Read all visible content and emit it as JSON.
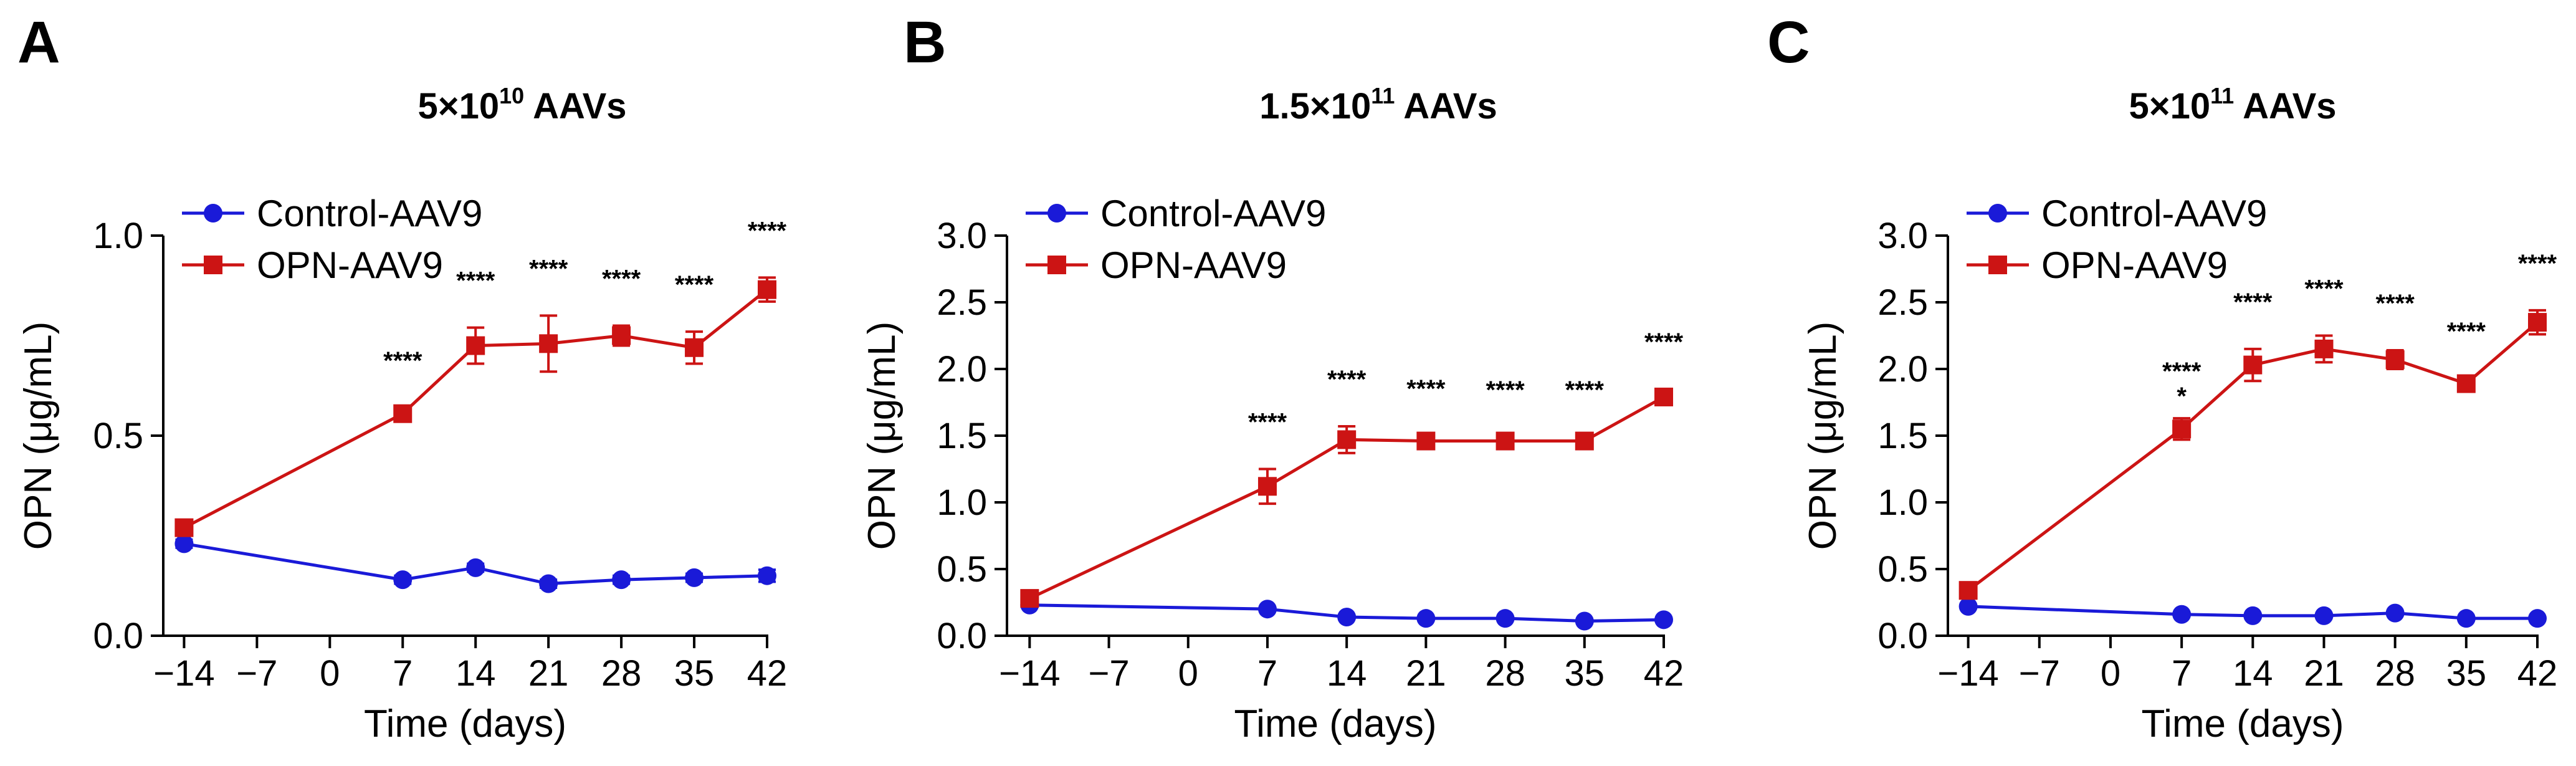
{
  "colors": {
    "control": "#1a1ad8",
    "opn": "#cc1414",
    "axis": "#000000"
  },
  "chart_data": [
    {
      "type": "line",
      "panel": "A",
      "title": "5×10",
      "title_sup": "10",
      "title_suffix": " AAVs",
      "xlabel": "Time (days)",
      "ylabel": "OPN (μg/mL)",
      "xlim": [
        -16,
        42
      ],
      "ylim": [
        0,
        1.0
      ],
      "xticks": [
        -14,
        -7,
        0,
        7,
        14,
        21,
        28,
        35,
        42
      ],
      "xtick_labels": [
        "−14",
        "−7",
        "0",
        "7",
        "14",
        "21",
        "28",
        "35",
        "42"
      ],
      "yticks": [
        0,
        0.5,
        1.0
      ],
      "ytick_labels": [
        "0.0",
        "0.5",
        "1.0"
      ],
      "legend_position": "top-left",
      "series": [
        {
          "name": "Control-AAV9",
          "color_key": "control",
          "marker": "circle",
          "x": [
            -14,
            7,
            14,
            21,
            28,
            35,
            42
          ],
          "y": [
            0.23,
            0.14,
            0.17,
            0.13,
            0.14,
            0.145,
            0.15
          ],
          "err": [
            0.01,
            0.01,
            0.01,
            0.01,
            0.01,
            0.01,
            0.015
          ]
        },
        {
          "name": "OPN-AAV9",
          "color_key": "opn",
          "marker": "square",
          "x": [
            -14,
            7,
            14,
            21,
            28,
            35,
            42
          ],
          "y": [
            0.27,
            0.555,
            0.725,
            0.73,
            0.75,
            0.72,
            0.865
          ],
          "err": [
            0.015,
            0.015,
            0.045,
            0.07,
            0.025,
            0.04,
            0.03
          ]
        }
      ],
      "annotations": [
        {
          "x": 7,
          "text": "****"
        },
        {
          "x": 14,
          "text": "****"
        },
        {
          "x": 21,
          "text": "****"
        },
        {
          "x": 28,
          "text": "****"
        },
        {
          "x": 35,
          "text": "****"
        },
        {
          "x": 42,
          "text": "****"
        }
      ]
    },
    {
      "type": "line",
      "panel": "B",
      "title": "1.5×10",
      "title_sup": "11",
      "title_suffix": " AAVs",
      "xlabel": "Time (days)",
      "ylabel": "OPN (μg/mL)",
      "xlim": [
        -16,
        42
      ],
      "ylim": [
        0,
        3.0
      ],
      "xticks": [
        -14,
        -7,
        0,
        7,
        14,
        21,
        28,
        35,
        42
      ],
      "xtick_labels": [
        "−14",
        "−7",
        "0",
        "7",
        "14",
        "21",
        "28",
        "35",
        "42"
      ],
      "yticks": [
        0,
        0.5,
        1.0,
        1.5,
        2.0,
        2.5,
        3.0
      ],
      "ytick_labels": [
        "0.0",
        "0.5",
        "1.0",
        "1.5",
        "2.0",
        "2.5",
        "3.0"
      ],
      "legend_position": "top-left",
      "series": [
        {
          "name": "Control-AAV9",
          "color_key": "control",
          "marker": "circle",
          "x": [
            -14,
            7,
            14,
            21,
            28,
            35,
            42
          ],
          "y": [
            0.23,
            0.2,
            0.14,
            0.13,
            0.13,
            0.11,
            0.12
          ],
          "err": [
            0.01,
            0.01,
            0.01,
            0.01,
            0.01,
            0.01,
            0.01
          ]
        },
        {
          "name": "OPN-AAV9",
          "color_key": "opn",
          "marker": "square",
          "x": [
            -14,
            7,
            14,
            21,
            28,
            35,
            42
          ],
          "y": [
            0.28,
            1.12,
            1.47,
            1.46,
            1.46,
            1.46,
            1.79
          ],
          "err": [
            0.04,
            0.13,
            0.1,
            0.04,
            0.03,
            0.03,
            0.06
          ]
        }
      ],
      "annotations": [
        {
          "x": 7,
          "text": "****"
        },
        {
          "x": 14,
          "text": "****"
        },
        {
          "x": 21,
          "text": "****"
        },
        {
          "x": 28,
          "text": "****"
        },
        {
          "x": 35,
          "text": "****"
        },
        {
          "x": 42,
          "text": "****"
        }
      ]
    },
    {
      "type": "line",
      "panel": "C",
      "title": "5×10",
      "title_sup": "11",
      "title_suffix": " AAVs",
      "xlabel": "Time (days)",
      "ylabel": "OPN (μg/mL)",
      "xlim": [
        -16,
        42
      ],
      "ylim": [
        0,
        3.0
      ],
      "xticks": [
        -14,
        -7,
        0,
        7,
        14,
        21,
        28,
        35,
        42
      ],
      "xtick_labels": [
        "−14",
        "−7",
        "0",
        "7",
        "14",
        "21",
        "28",
        "35",
        "42"
      ],
      "yticks": [
        0,
        0.5,
        1.0,
        1.5,
        2.0,
        2.5,
        3.0
      ],
      "ytick_labels": [
        "0.0",
        "0.5",
        "1.0",
        "1.5",
        "2.0",
        "2.5",
        "3.0"
      ],
      "legend_position": "top-left",
      "series": [
        {
          "name": "Control-AAV9",
          "color_key": "control",
          "marker": "circle",
          "x": [
            -14,
            7,
            14,
            21,
            28,
            35,
            42
          ],
          "y": [
            0.22,
            0.16,
            0.15,
            0.15,
            0.17,
            0.13,
            0.13
          ],
          "err": [
            0.01,
            0.01,
            0.01,
            0.01,
            0.01,
            0.01,
            0.01
          ]
        },
        {
          "name": "OPN-AAV9",
          "color_key": "opn",
          "marker": "square",
          "x": [
            -14,
            7,
            14,
            21,
            28,
            35,
            42
          ],
          "y": [
            0.34,
            1.55,
            2.03,
            2.15,
            2.07,
            1.89,
            2.35
          ],
          "err": [
            0.06,
            0.08,
            0.12,
            0.1,
            0.07,
            0.04,
            0.09
          ]
        }
      ],
      "annotations": [
        {
          "x": 7,
          "text": "****"
        },
        {
          "x": 7,
          "text": "*",
          "tier": 2
        },
        {
          "x": 14,
          "text": "****"
        },
        {
          "x": 21,
          "text": "****"
        },
        {
          "x": 28,
          "text": "****"
        },
        {
          "x": 35,
          "text": "****"
        },
        {
          "x": 42,
          "text": "****"
        }
      ]
    }
  ]
}
